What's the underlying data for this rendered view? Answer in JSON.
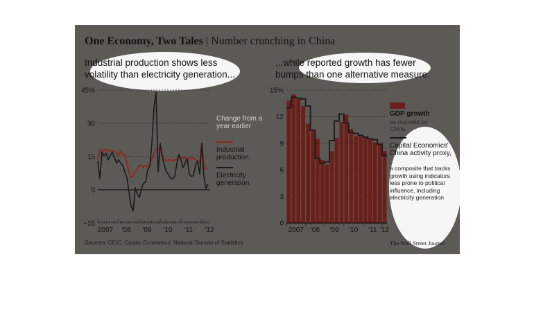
{
  "header": {
    "title": "One Economy, Two Tales",
    "separator": "|",
    "subtitle": "Number crunching in China"
  },
  "left_panel": {
    "heading": "Industrial production shows less volatility than electricity generation...",
    "legend_note": "Change from a year earlier",
    "legend_industrial": "Industrial production",
    "legend_electricity": "Electricity generation"
  },
  "right_panel": {
    "heading": "...while reported growth has fewer bumps than one alternative measure.",
    "legend_gdp_title": "GDP growth",
    "legend_gdp_note": "as reported by China",
    "legend_proxy_title": "Capital Economics' China activity proxy,",
    "legend_proxy_note": "a composite that tracks growth using indicators less prone to political influence, including electricity generation"
  },
  "footer": {
    "sources": "Sources: CEIC; Capital Economics; National Bureau of Statistics",
    "credit": "The Wall Street Journal"
  },
  "colors": {
    "panel_bg": "#5c5a55",
    "industrial_line": "#8a2a22",
    "electricity_line": "#1a1a1a",
    "gdp_bars": "#6b1f1b",
    "proxy_line": "#1a1a1a",
    "highlight": "#ffffff"
  },
  "chart_data": [
    {
      "type": "line",
      "ylim": [
        -15,
        45
      ],
      "yticks": [
        -15,
        0,
        15,
        30,
        45
      ],
      "ytick_labels": [
        "−15",
        "0",
        "15",
        "30",
        "45%"
      ],
      "xlim": [
        2007.0,
        2012.4
      ],
      "xticks": [
        2007.0,
        2008.0,
        2009.0,
        2010.0,
        2011.0,
        2012.0
      ],
      "xtick_labels": [
        "2007",
        "'08",
        "'09",
        "'10",
        "'11",
        "'12"
      ],
      "grid": true,
      "series": [
        {
          "name": "Industrial production",
          "color": "#8a2a22",
          "x": [
            2007.0,
            2007.1,
            2007.2,
            2007.3,
            2007.4,
            2007.5,
            2007.6,
            2007.7,
            2007.8,
            2007.9,
            2008.0,
            2008.1,
            2008.2,
            2008.3,
            2008.4,
            2008.5,
            2008.6,
            2008.7,
            2008.8,
            2008.9,
            2009.0,
            2009.1,
            2009.2,
            2009.3,
            2009.4,
            2009.5,
            2009.6,
            2009.7,
            2009.8,
            2009.9,
            2010.0,
            2010.1,
            2010.2,
            2010.3,
            2010.4,
            2010.5,
            2010.6,
            2010.7,
            2010.8,
            2010.9,
            2011.0,
            2011.1,
            2011.2,
            2011.3,
            2011.4,
            2011.5,
            2011.6,
            2011.7,
            2011.8,
            2011.9,
            2012.0,
            2012.1,
            2012.2,
            2012.3
          ],
          "values": [
            13.5,
            17.5,
            18,
            17.5,
            18.5,
            17,
            18,
            17.5,
            17.5,
            16.5,
            15.5,
            17.5,
            16,
            15.5,
            12,
            8,
            5.5,
            6.5,
            8,
            9.5,
            11,
            11,
            10,
            11,
            10.5,
            12,
            14,
            16.5,
            18.5,
            18.5,
            18,
            16,
            14,
            13,
            13.5,
            13.5,
            13,
            13.5,
            13.5,
            14,
            14.5,
            14.5,
            14.5,
            13.5,
            14,
            15,
            14,
            13.5,
            13,
            12.5,
            21,
            11.5,
            9.5,
            9.5
          ]
        },
        {
          "name": "Electricity generation",
          "color": "#1a1a1a",
          "x": [
            2007.0,
            2007.1,
            2007.2,
            2007.3,
            2007.4,
            2007.5,
            2007.6,
            2007.7,
            2007.8,
            2007.9,
            2008.0,
            2008.1,
            2008.2,
            2008.3,
            2008.4,
            2008.5,
            2008.6,
            2008.7,
            2008.8,
            2008.9,
            2009.0,
            2009.1,
            2009.2,
            2009.3,
            2009.4,
            2009.5,
            2009.6,
            2009.7,
            2009.8,
            2009.9,
            2010.0,
            2010.1,
            2010.2,
            2010.3,
            2010.4,
            2010.5,
            2010.6,
            2010.7,
            2010.8,
            2010.9,
            2011.0,
            2011.1,
            2011.2,
            2011.3,
            2011.4,
            2011.5,
            2011.6,
            2011.7,
            2011.8,
            2011.9,
            2012.0,
            2012.1,
            2012.2,
            2012.3
          ],
          "values": [
            13,
            5,
            17,
            15.5,
            16.5,
            13.5,
            15.5,
            17,
            14.5,
            12,
            13.5,
            12,
            11,
            8,
            5.5,
            -1,
            -7.5,
            -9.5,
            1,
            -2,
            -3.5,
            0.5,
            3,
            3.5,
            9,
            10.5,
            21,
            37,
            44,
            8,
            21,
            15,
            11,
            8,
            7,
            5,
            5,
            6,
            12,
            16,
            13.5,
            10,
            12,
            14,
            7,
            6,
            6.5,
            11,
            13,
            7,
            21,
            6,
            0.5,
            2.5
          ]
        }
      ]
    },
    {
      "type": "bar",
      "ylim": [
        0,
        15
      ],
      "yticks": [
        0,
        3,
        6,
        9,
        12,
        15
      ],
      "ytick_labels": [
        "0",
        "3",
        "6",
        "9",
        "12",
        "15%"
      ],
      "categories": [
        "2007 Q1",
        "2007 Q2",
        "2007 Q3",
        "2007 Q4",
        "2008 Q1",
        "2008 Q2",
        "2008 Q3",
        "2008 Q4",
        "2009 Q1",
        "2009 Q2",
        "2009 Q3",
        "2009 Q4",
        "2010 Q1",
        "2010 Q2",
        "2010 Q3",
        "2010 Q4",
        "2011 Q1",
        "2011 Q2",
        "2011 Q3",
        "2011 Q4",
        "2012 Q1"
      ],
      "xtick_labels": [
        "2007",
        "'08",
        "'09",
        "'10",
        "'11",
        "'12"
      ],
      "grid": true,
      "series": [
        {
          "name": "GDP growth",
          "type": "bar",
          "color": "#6b1f1b",
          "values": [
            13.8,
            14.5,
            14,
            13.2,
            11.2,
            10.5,
            9.5,
            7.1,
            6.6,
            8.1,
            9.6,
            11.4,
            12.2,
            10.6,
            9.8,
            9.8,
            9.7,
            9.5,
            9.1,
            8.9,
            8.1
          ]
        },
        {
          "name": "Capital Economics' China activity proxy",
          "type": "line",
          "color": "#1a1a1a",
          "values": [
            13.0,
            14.2,
            14.1,
            14.0,
            13.2,
            10.5,
            7.3,
            6.7,
            6.9,
            9.3,
            11.5,
            12.3,
            11.3,
            10.2,
            10.1,
            9.9,
            9.7,
            9.5,
            9.4,
            8.9,
            7.6
          ]
        }
      ]
    }
  ]
}
